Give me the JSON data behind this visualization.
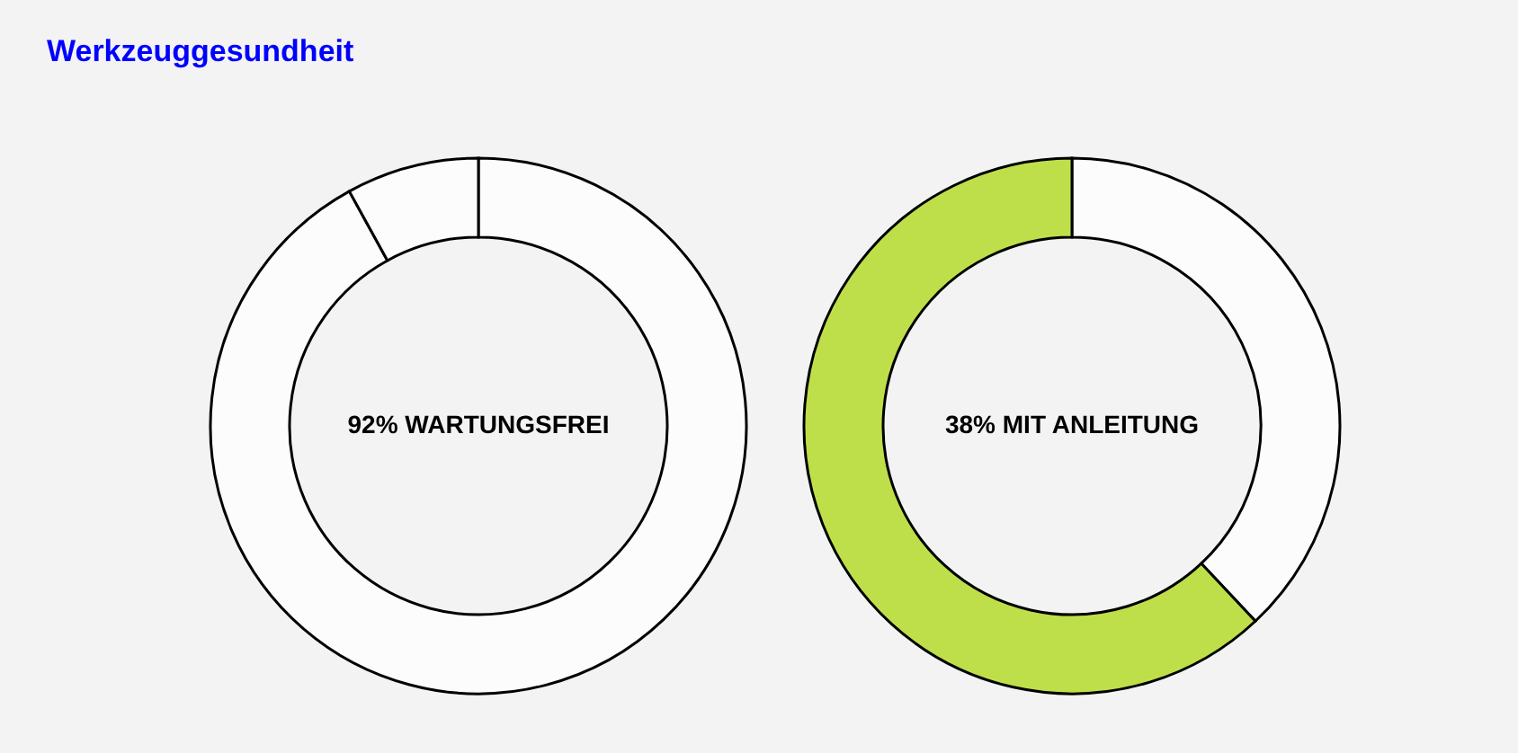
{
  "chart_data": [
    {
      "type": "donut",
      "title": "Werkzeuggesundheit",
      "categories": [
        null,
        null
      ],
      "values": [
        92,
        8
      ],
      "colors": [
        "#fcfcfc",
        "#fcfcfc"
      ],
      "annotations": [
        "92% WARTUNGSFREI"
      ]
    },
    {
      "type": "donut",
      "categories": [
        null,
        null
      ],
      "values": [
        38,
        62
      ],
      "colors": [
        "#fcfcfc",
        "#bfdf4a"
      ],
      "annotations": [
        "38% MIT ANLEITUNG"
      ]
    }
  ]
}
